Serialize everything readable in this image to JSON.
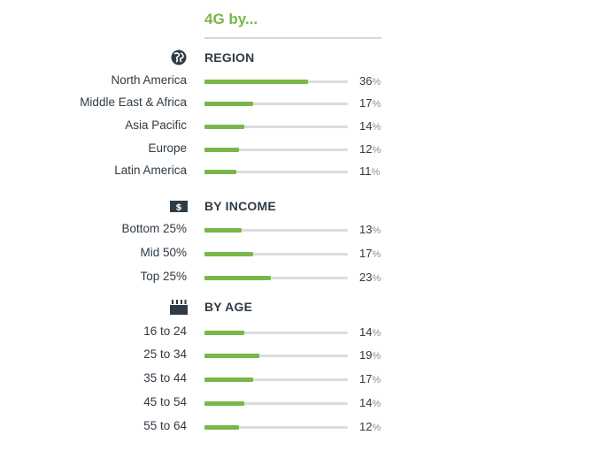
{
  "chart_data": {
    "type": "bar",
    "title": "4G by...",
    "xlim": [
      0,
      50
    ],
    "colors": {
      "fill": "#7ab648",
      "track": "#dadcdd"
    },
    "sections": [
      {
        "label": "REGION",
        "icon": "globe-icon",
        "categories": [
          "North America",
          "Middle East & Africa",
          "Asia Pacific",
          "Europe",
          "Latin America"
        ],
        "values": [
          36,
          17,
          14,
          12,
          11
        ]
      },
      {
        "label": "BY INCOME",
        "icon": "dollar-icon",
        "categories": [
          "Bottom 25%",
          "Mid 50%",
          "Top 25%"
        ],
        "values": [
          13,
          17,
          23
        ]
      },
      {
        "label": "BY AGE",
        "icon": "birthday-cake-icon",
        "categories": [
          "16 to 24",
          "25 to 34",
          "35 to 44",
          "45 to 54",
          "55 to 64"
        ],
        "values": [
          14,
          19,
          17,
          14,
          12
        ]
      }
    ]
  }
}
